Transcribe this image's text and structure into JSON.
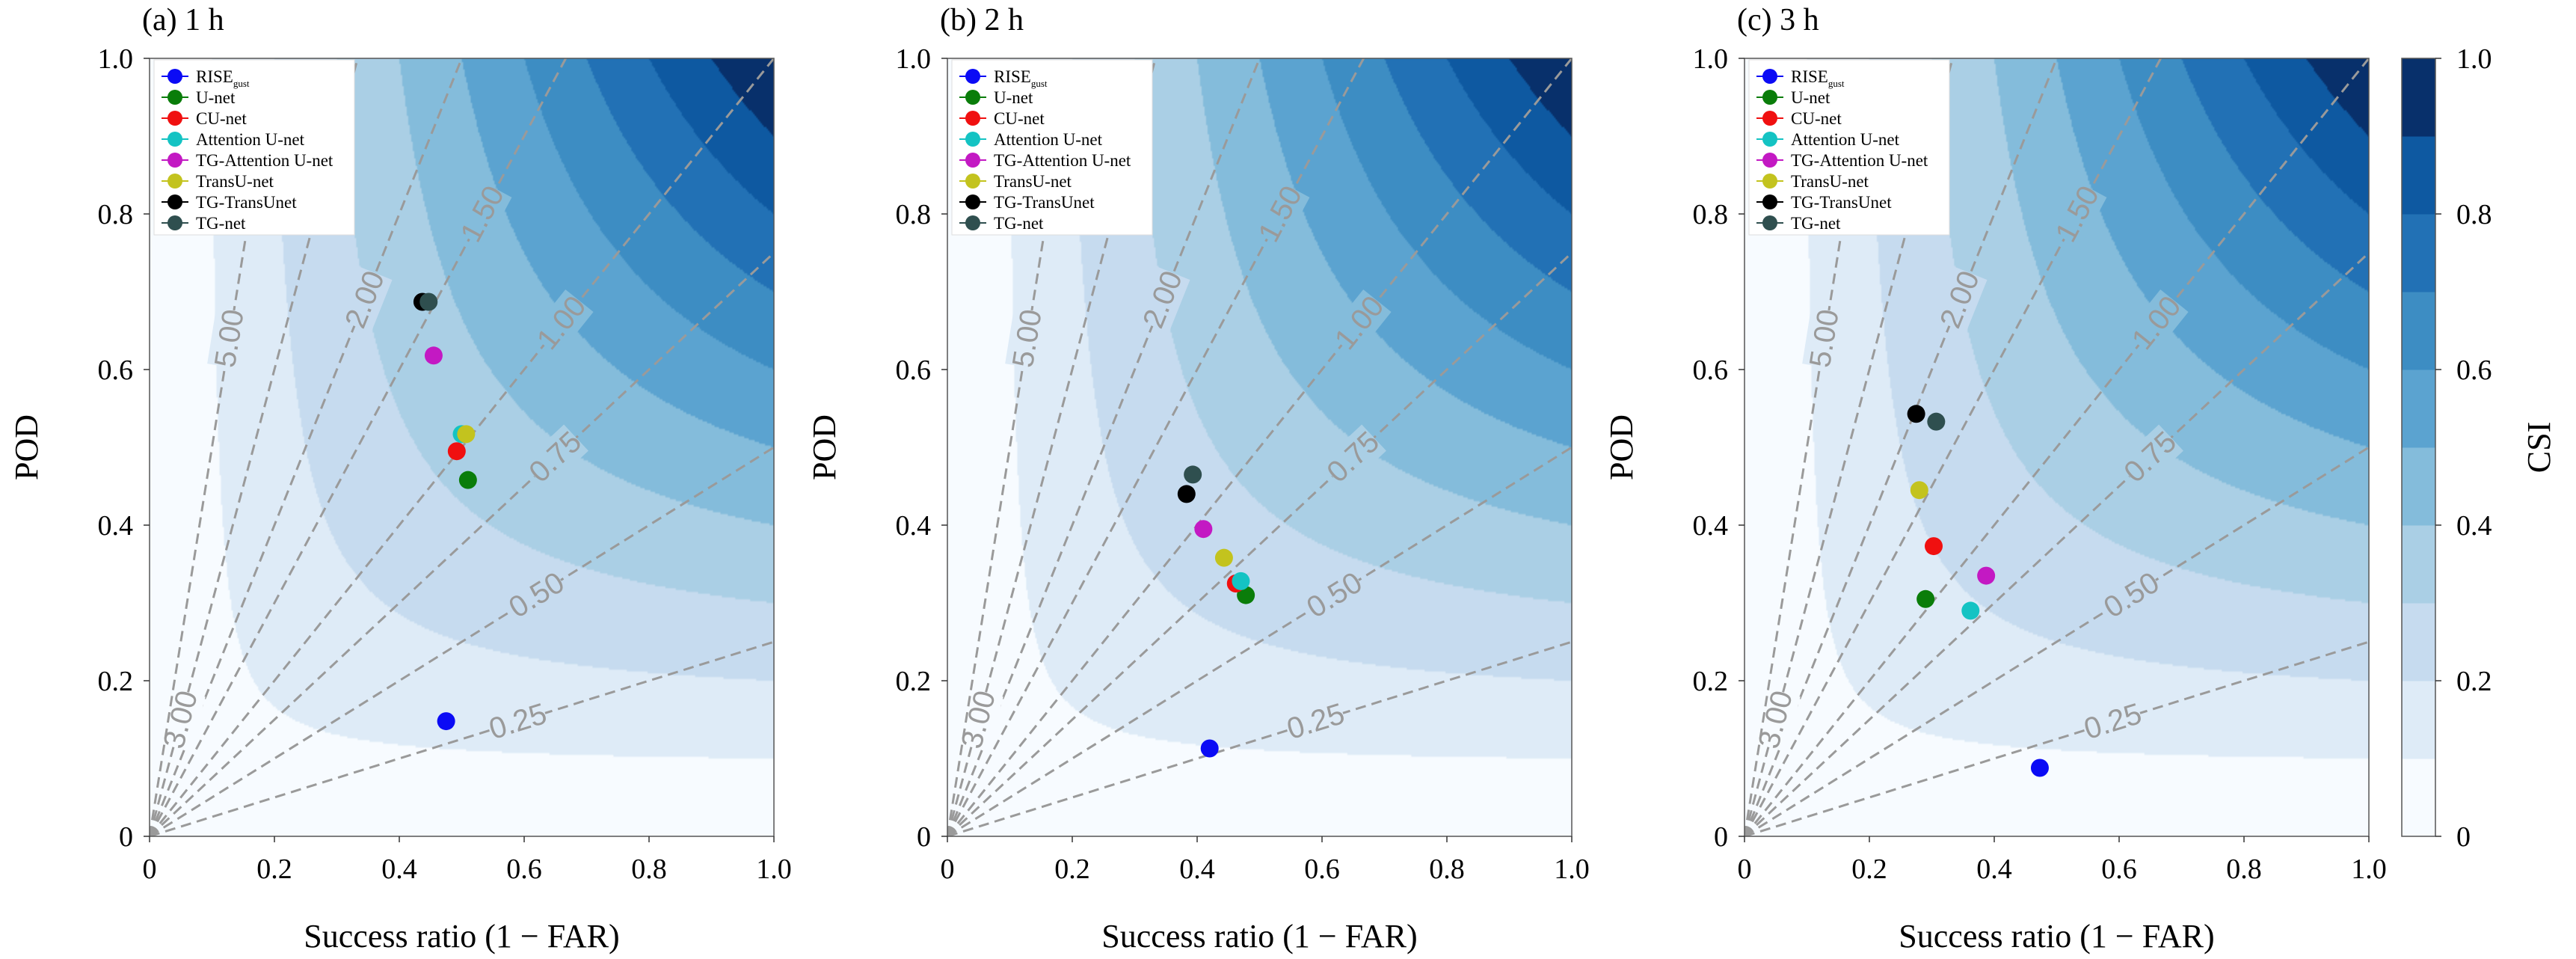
{
  "chart_data": {
    "type": "performance_diagram",
    "shared": {
      "xlabel": "Success ratio (1 − FAR)",
      "ylabel": "POD",
      "xlim": [
        0,
        1
      ],
      "ylim": [
        0,
        1
      ],
      "x_ticks": [
        "0",
        "0.2",
        "0.4",
        "0.6",
        "0.8",
        "1.0"
      ],
      "y_ticks": [
        "0",
        "0.2",
        "0.4",
        "0.6",
        "0.8",
        "1.0"
      ],
      "bias_lines": [
        {
          "value": 0.25,
          "label": "0.25"
        },
        {
          "value": 0.5,
          "label": "0.50"
        },
        {
          "value": 0.75,
          "label": "0.75"
        },
        {
          "value": 1.0,
          "label": "1.00"
        },
        {
          "value": 1.5,
          "label": "1.50"
        },
        {
          "value": 2.0,
          "label": "2.00"
        },
        {
          "value": 3.0,
          "label": "3.00"
        },
        {
          "value": 5.0,
          "label": "5.00"
        }
      ],
      "csi_colorbar": {
        "label": "CSI",
        "levels": [
          0,
          0.1,
          0.2,
          0.3,
          0.4,
          0.5,
          0.6,
          0.7,
          0.8,
          0.9,
          1.0
        ],
        "tick_labels": [
          "0",
          "0.2",
          "0.4",
          "0.6",
          "0.8",
          "1.0"
        ],
        "tick_values": [
          0,
          0.2,
          0.4,
          0.6,
          0.8,
          1.0
        ],
        "colors": [
          "#f7fbff",
          "#deebf7",
          "#c6dbef",
          "#aacfe5",
          "#84bcdb",
          "#5ba3d0",
          "#3d8dc3",
          "#2271b5",
          "#0e59a1",
          "#08306b"
        ]
      },
      "legend_position": "top-left",
      "legend": [
        {
          "name": "RISE",
          "sub": "gust",
          "color": "#0b0bf5"
        },
        {
          "name": "U-net",
          "sub": "",
          "color": "#0a7d0a"
        },
        {
          "name": "CU-net",
          "sub": "",
          "color": "#f01010"
        },
        {
          "name": "Attention U-net",
          "sub": "",
          "color": "#14c3c3"
        },
        {
          "name": "TG-Attention U-net",
          "sub": "",
          "color": "#c319c3"
        },
        {
          "name": "TransU-net",
          "sub": "",
          "color": "#c3c31e"
        },
        {
          "name": "TG-TransUnet",
          "sub": "",
          "color": "#000000"
        },
        {
          "name": "TG-net",
          "sub": "",
          "color": "#2f4f4f"
        }
      ]
    },
    "panels": [
      {
        "title": "(a) 1 h",
        "points": [
          {
            "model": "RISE",
            "x": 0.475,
            "y": 0.148
          },
          {
            "model": "U-net",
            "x": 0.51,
            "y": 0.458
          },
          {
            "model": "CU-net",
            "x": 0.492,
            "y": 0.495
          },
          {
            "model": "Attention U-net",
            "x": 0.5,
            "y": 0.517
          },
          {
            "model": "TG-Attention U-net",
            "x": 0.455,
            "y": 0.618
          },
          {
            "model": "TransU-net",
            "x": 0.507,
            "y": 0.517
          },
          {
            "model": "TG-TransUnet",
            "x": 0.437,
            "y": 0.687
          },
          {
            "model": "TG-net",
            "x": 0.447,
            "y": 0.687
          }
        ]
      },
      {
        "title": "(b) 2 h",
        "points": [
          {
            "model": "RISE",
            "x": 0.42,
            "y": 0.113
          },
          {
            "model": "U-net",
            "x": 0.478,
            "y": 0.31
          },
          {
            "model": "CU-net",
            "x": 0.462,
            "y": 0.325
          },
          {
            "model": "Attention U-net",
            "x": 0.47,
            "y": 0.328
          },
          {
            "model": "TG-Attention U-net",
            "x": 0.41,
            "y": 0.395
          },
          {
            "model": "TransU-net",
            "x": 0.443,
            "y": 0.358
          },
          {
            "model": "TG-TransUnet",
            "x": 0.383,
            "y": 0.44
          },
          {
            "model": "TG-net",
            "x": 0.393,
            "y": 0.465
          }
        ]
      },
      {
        "title": "(c) 3 h",
        "points": [
          {
            "model": "RISE",
            "x": 0.473,
            "y": 0.088
          },
          {
            "model": "U-net",
            "x": 0.29,
            "y": 0.305
          },
          {
            "model": "CU-net",
            "x": 0.303,
            "y": 0.373
          },
          {
            "model": "Attention U-net",
            "x": 0.362,
            "y": 0.29
          },
          {
            "model": "TG-Attention U-net",
            "x": 0.387,
            "y": 0.335
          },
          {
            "model": "TransU-net",
            "x": 0.28,
            "y": 0.445
          },
          {
            "model": "TG-TransUnet",
            "x": 0.275,
            "y": 0.543
          },
          {
            "model": "TG-net",
            "x": 0.307,
            "y": 0.533
          }
        ]
      }
    ]
  }
}
